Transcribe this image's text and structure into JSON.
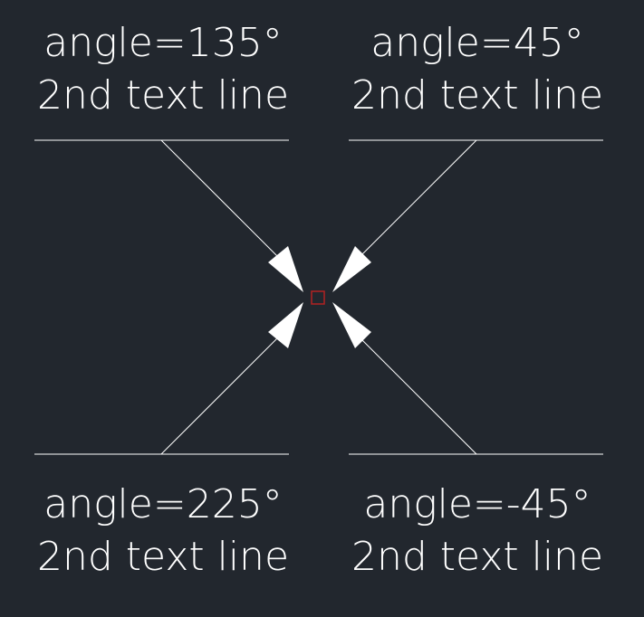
{
  "colors": {
    "background": "#22272e",
    "lines": "#ffffff",
    "arrowheads": "#ffffff",
    "center_marker": "#b22222"
  },
  "callouts": [
    {
      "id": "135",
      "line1": "angle=135°",
      "line2": "2nd text line"
    },
    {
      "id": "45",
      "line1": "angle=45°",
      "line2": "2nd text line"
    },
    {
      "id": "225",
      "line1": "angle=225°",
      "line2": "2nd text line"
    },
    {
      "id": "neg45",
      "line1": "angle=-45°",
      "line2": "2nd text line"
    }
  ]
}
